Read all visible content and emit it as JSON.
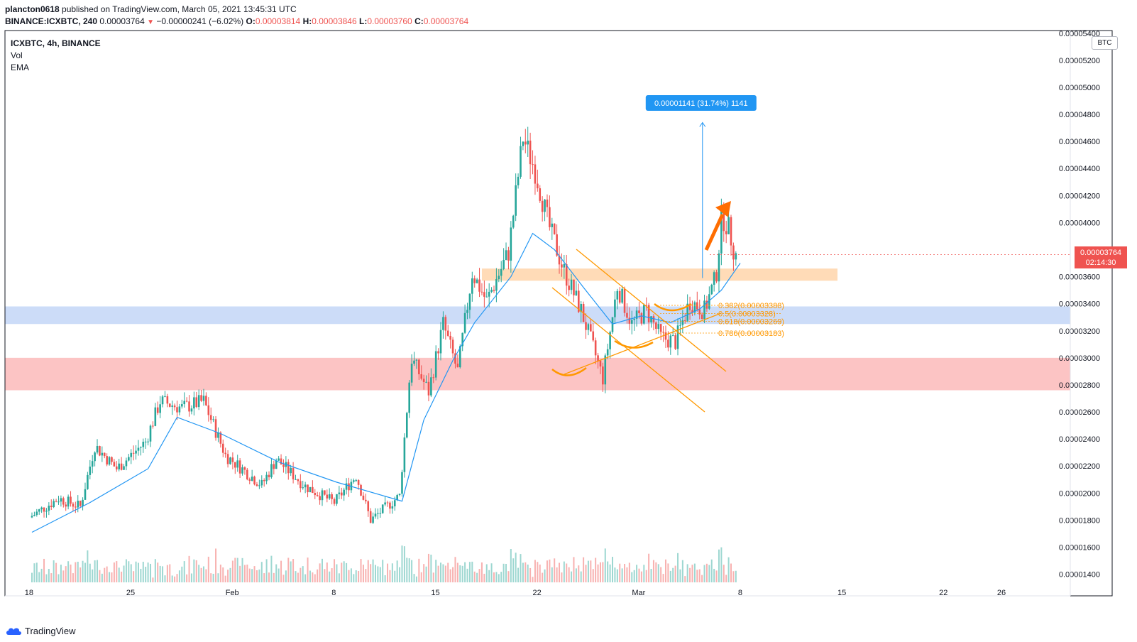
{
  "header": {
    "publisher": "plancton0618",
    "published_text": "published on TradingView.com, March 05, 2021 13:45:31 UTC",
    "symbol_line": "BINANCE:ICXBTC, 240",
    "last": "0.00003764",
    "change": "−0.00000241 (−6.02%)",
    "o_label": "O:",
    "o_val": "0.00003814",
    "h_label": "H:",
    "h_val": "0.00003846",
    "l_label": "L:",
    "l_val": "0.00003760",
    "c_label": "C:",
    "c_val": "0.00003764"
  },
  "legend": {
    "symbol": "ICXBTC, 4h, BINANCE",
    "vol": "Vol",
    "ema": "EMA"
  },
  "scale_box": "BTC",
  "price_tag": {
    "price": "0.00003764",
    "countdown": "02:14:30"
  },
  "measure_label": "0.00001141 (31.74%) 1141",
  "fib_labels": [
    "0.382(0.00003388)",
    "0.5(0.00003328)",
    "0.618(0.00003269)",
    "0.786(0.00003183)"
  ],
  "footer": {
    "brand": "TradingView"
  },
  "colors": {
    "up": "#26a69a",
    "down": "#ef5350",
    "ema": "#2196f3",
    "zone_orange": "#ffcc99",
    "zone_blue": "#bbd0f5",
    "zone_red": "#fbb0b0",
    "annotation": "#ff9800",
    "arrow": "#ff6d00"
  },
  "chart_data": {
    "type": "candlestick",
    "timeframe": "4h",
    "y_axis": {
      "min": 1.24e-05,
      "max": 5.42e-05,
      "ticks": [
        "0.00001400",
        "0.00001600",
        "0.00001800",
        "0.00002000",
        "0.00002200",
        "0.00002400",
        "0.00002600",
        "0.00002800",
        "0.00003000",
        "0.00003200",
        "0.00003400",
        "0.00003600",
        "0.00004000",
        "0.00004200",
        "0.00004400",
        "0.00004600",
        "0.00004800",
        "0.00005000",
        "0.00005200",
        "0.00005400"
      ]
    },
    "x_axis": {
      "ticks": [
        {
          "label": "18",
          "day": -0.2
        },
        {
          "label": "25",
          "day": 6.8
        },
        {
          "label": "Feb",
          "day": 13.8
        },
        {
          "label": "8",
          "day": 20.8
        },
        {
          "label": "15",
          "day": 27.8
        },
        {
          "label": "22",
          "day": 34.8
        },
        {
          "label": "Mar",
          "day": 41.8
        },
        {
          "label": "8",
          "day": 48.8
        },
        {
          "label": "15",
          "day": 55.8
        },
        {
          "label": "22",
          "day": 62.8
        },
        {
          "label": "26",
          "day": 66.8
        }
      ]
    },
    "anchors": [
      {
        "day": 0,
        "price": 1.82e-05
      },
      {
        "day": 2,
        "price": 1.96e-05
      },
      {
        "day": 3.5,
        "price": 1.9e-05
      },
      {
        "day": 4.5,
        "price": 2.35e-05
      },
      {
        "day": 6,
        "price": 2.18e-05
      },
      {
        "day": 8,
        "price": 2.38e-05
      },
      {
        "day": 9,
        "price": 2.68e-05
      },
      {
        "day": 10.5,
        "price": 2.63e-05
      },
      {
        "day": 12,
        "price": 2.68e-05
      },
      {
        "day": 13.5,
        "price": 2.28e-05
      },
      {
        "day": 16,
        "price": 2.06e-05
      },
      {
        "day": 17,
        "price": 2.25e-05
      },
      {
        "day": 19,
        "price": 2.05e-05
      },
      {
        "day": 21,
        "price": 1.93e-05
      },
      {
        "day": 22.5,
        "price": 2.13e-05
      },
      {
        "day": 23.5,
        "price": 1.8e-05
      },
      {
        "day": 25.5,
        "price": 1.98e-05
      },
      {
        "day": 26.3,
        "price": 3e-05
      },
      {
        "day": 27.5,
        "price": 2.75e-05
      },
      {
        "day": 28.5,
        "price": 3.25e-05
      },
      {
        "day": 29.5,
        "price": 2.9e-05
      },
      {
        "day": 30.5,
        "price": 3.63e-05
      },
      {
        "day": 31.5,
        "price": 3.42e-05
      },
      {
        "day": 33,
        "price": 3.78e-05
      },
      {
        "day": 34,
        "price": 4.63e-05
      },
      {
        "day": 34.8,
        "price": 4.4e-05
      },
      {
        "day": 35.8,
        "price": 3.97e-05
      },
      {
        "day": 36.8,
        "price": 3.65e-05
      },
      {
        "day": 38,
        "price": 3.35e-05
      },
      {
        "day": 39.5,
        "price": 2.85e-05
      },
      {
        "day": 40.5,
        "price": 3.53e-05
      },
      {
        "day": 41.5,
        "price": 3.25e-05
      },
      {
        "day": 42.5,
        "price": 3.35e-05
      },
      {
        "day": 43.5,
        "price": 3.15e-05
      },
      {
        "day": 44.5,
        "price": 3.12e-05
      },
      {
        "day": 45.5,
        "price": 3.42e-05
      },
      {
        "day": 46.5,
        "price": 3.35e-05
      },
      {
        "day": 47.3,
        "price": 3.6e-05
      },
      {
        "day": 47.7,
        "price": 4.05e-05
      },
      {
        "day": 48.2,
        "price": 3.95e-05
      },
      {
        "day": 48.6,
        "price": 3.76e-05
      }
    ],
    "ema_anchors": [
      {
        "day": 0,
        "price": 1.71e-05
      },
      {
        "day": 4,
        "price": 1.93e-05
      },
      {
        "day": 8,
        "price": 2.18e-05
      },
      {
        "day": 10,
        "price": 2.56e-05
      },
      {
        "day": 13,
        "price": 2.44e-05
      },
      {
        "day": 17,
        "price": 2.23e-05
      },
      {
        "day": 21,
        "price": 2.08e-05
      },
      {
        "day": 25.5,
        "price": 1.94e-05
      },
      {
        "day": 27,
        "price": 2.54e-05
      },
      {
        "day": 29,
        "price": 2.98e-05
      },
      {
        "day": 30.5,
        "price": 3.26e-05
      },
      {
        "day": 33,
        "price": 3.6e-05
      },
      {
        "day": 34.5,
        "price": 3.92e-05
      },
      {
        "day": 36,
        "price": 3.8e-05
      },
      {
        "day": 38,
        "price": 3.52e-05
      },
      {
        "day": 40,
        "price": 3.25e-05
      },
      {
        "day": 42,
        "price": 3.31e-05
      },
      {
        "day": 44,
        "price": 3.26e-05
      },
      {
        "day": 46,
        "price": 3.36e-05
      },
      {
        "day": 47.5,
        "price": 3.5e-05
      },
      {
        "day": 48.8,
        "price": 3.7e-05
      }
    ],
    "zones": [
      {
        "color": "orange",
        "from": 3.57e-05,
        "to": 3.66e-05,
        "day_start": 31,
        "day_end": 55.5
      },
      {
        "color": "blue",
        "from": 3.25e-05,
        "to": 3.38e-05,
        "day_start": -2,
        "day_end": 72
      },
      {
        "color": "red",
        "from": 2.76e-05,
        "to": 3e-05,
        "day_start": -2,
        "day_end": 72
      }
    ],
    "fib_levels": [
      3.388e-05,
      3.328e-05,
      3.269e-05,
      3.183e-05
    ],
    "measure": {
      "value": 1.141e-05,
      "percent": 31.74,
      "from": 3.59e-05,
      "to": 4.74e-05,
      "day": 46.2
    }
  }
}
